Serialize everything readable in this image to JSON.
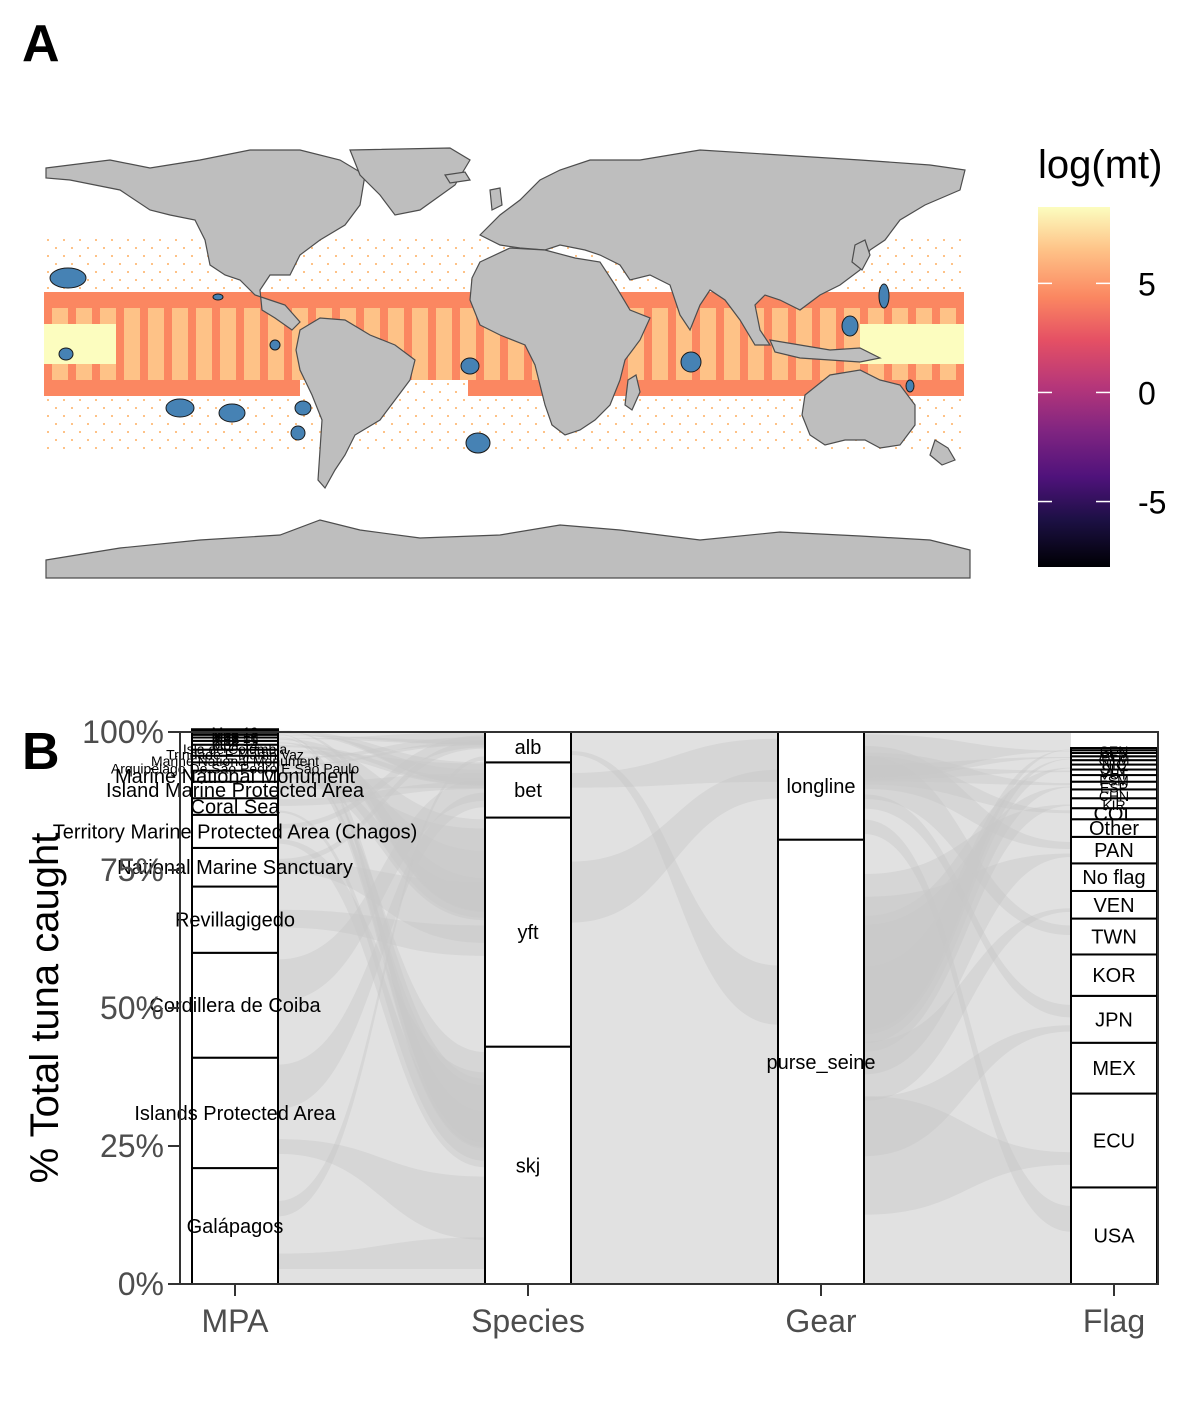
{
  "panels": {
    "a_label": "A",
    "b_label": "B"
  },
  "colors": {
    "land": "#bebebe",
    "land_stroke": "#4d4d4d",
    "mpa": "#4682b4",
    "flow": "#c8c8c8",
    "stratum_fill": "#ffffff",
    "stratum_stroke": "#000000"
  },
  "chart_data": [
    {
      "type": "heatmap",
      "panel": "A",
      "legend": {
        "title": "log(mt)",
        "ticks": [
          "5",
          "0",
          "-5"
        ],
        "tick_values": [
          5,
          0,
          -5
        ],
        "range": [
          -8,
          8.5
        ],
        "palette": "magma",
        "placement": "right"
      },
      "layers": [
        "land",
        "tuna catch grid cells",
        "marine protected areas"
      ]
    },
    {
      "type": "alluvial",
      "panel": "B",
      "ylabel": "% Total tuna caught",
      "ylim": [
        0,
        100
      ],
      "yticks": [
        "0%",
        "25%",
        "50%",
        "75%",
        "100%"
      ],
      "ytick_values": [
        0,
        25,
        50,
        75,
        100
      ],
      "axes": [
        "MPA",
        "Species",
        "Gear",
        "Flag"
      ],
      "strata": {
        "MPA": [
          {
            "label": "Galápagos",
            "value": 21
          },
          {
            "label": "Islands Protected Area",
            "value": 20
          },
          {
            "label": "Cordillera de Coiba",
            "value": 19
          },
          {
            "label": "Revillagigedo",
            "value": 12
          },
          {
            "label": "National Marine Sanctuary",
            "value": 7
          },
          {
            "label": "Territory Marine Protected Area (Chagos)",
            "value": 6
          },
          {
            "label": "Coral Sea",
            "value": 3
          },
          {
            "label": "Island Marine Protected Area",
            "value": 3
          },
          {
            "label": "Marine National Monument",
            "value": 2
          },
          {
            "label": "Arquipélago De São Pedro E São Paulo",
            "value": 1.5
          },
          {
            "label": "Marine National Monument",
            "value": 1.2
          },
          {
            "label": "Trindade E Martin Vaz",
            "value": 1.1
          },
          {
            "label": "Isla de Columbia",
            "value": 0.9
          },
          {
            "label": "Mpa 14",
            "value": 0.7
          },
          {
            "label": "Mpa 15",
            "value": 0.6
          },
          {
            "label": "Mpa 16",
            "value": 0.5
          },
          {
            "label": "Mpa 17",
            "value": 0.4
          },
          {
            "label": "Mpa 18",
            "value": 0.3
          },
          {
            "label": "Mpa 19",
            "value": 0.3
          }
        ],
        "Species": [
          {
            "label": "skj",
            "value": 43
          },
          {
            "label": "yft",
            "value": 41.5
          },
          {
            "label": "bet",
            "value": 10
          },
          {
            "label": "alb",
            "value": 5.5
          }
        ],
        "Gear": [
          {
            "label": "purse_seine",
            "value": 80.5
          },
          {
            "label": "longline",
            "value": 19.5
          }
        ],
        "Flag": [
          {
            "label": "USA",
            "value": 17.5
          },
          {
            "label": "ECU",
            "value": 17
          },
          {
            "label": "MEX",
            "value": 9.2
          },
          {
            "label": "JPN",
            "value": 8.5
          },
          {
            "label": "KOR",
            "value": 7.5
          },
          {
            "label": "TWN",
            "value": 6.5
          },
          {
            "label": "VEN",
            "value": 5
          },
          {
            "label": "No flag",
            "value": 5
          },
          {
            "label": "PAN",
            "value": 4.8
          },
          {
            "label": "Other",
            "value": 3.2
          },
          {
            "label": "COL",
            "value": 2
          },
          {
            "label": "KIR",
            "value": 1.8
          },
          {
            "label": "CHN",
            "value": 1.6
          },
          {
            "label": "ESP",
            "value": 1.4
          },
          {
            "label": "FSM",
            "value": 1.2
          },
          {
            "label": "VUT",
            "value": 1
          },
          {
            "label": "SLV",
            "value": 0.9
          },
          {
            "label": "NIC",
            "value": 0.8
          },
          {
            "label": "GTM",
            "value": 0.7
          },
          {
            "label": "BLZ",
            "value": 0.6
          },
          {
            "label": "CPV",
            "value": 0.5
          },
          {
            "label": "SEN",
            "value": 0.4
          }
        ]
      },
      "grid": false
    }
  ]
}
